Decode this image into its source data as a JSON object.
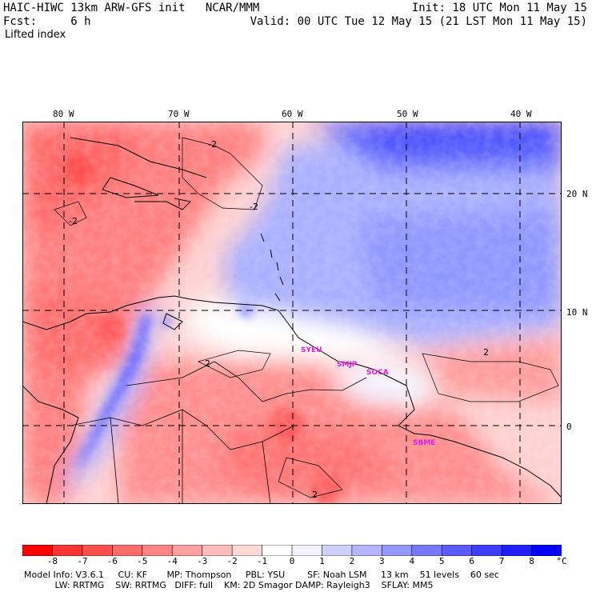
{
  "header": {
    "model_title": "HAIC-HIWC 13km ARW-GFS init   NCAR/MMM",
    "init_time": "Init: 18 UTC Mon 11 May 15",
    "forecast_label": "Fcst:     6 h",
    "valid_time": "Valid: 00 UTC Tue 12 May 15 (21 LST Mon 11 May 15)",
    "field_name": "Lifted index"
  },
  "map": {
    "longitude_labels": [
      "80 W",
      "70 W",
      "60 W",
      "50 W",
      "40 W"
    ],
    "latitude_labels": [
      "20 N",
      "10 N",
      "0"
    ],
    "stations": [
      "SYEU",
      "SMJP",
      "SOCA",
      "SBME"
    ],
    "station_color": "#e020e0",
    "contour_labels": [
      "-2",
      "-2",
      "-2",
      "2",
      "2",
      "2"
    ]
  },
  "colorbar": {
    "units": "°C",
    "tick_labels": [
      "-8",
      "-7",
      "-6",
      "-5",
      "-4",
      "-3",
      "-2",
      "-1",
      "0",
      "1",
      "2",
      "3",
      "4",
      "5",
      "6",
      "7",
      "8"
    ],
    "colors": [
      "#ff0000",
      "#ff3333",
      "#ff5050",
      "#ff6b6b",
      "#ff8585",
      "#ffa0a0",
      "#ffbcbc",
      "#ffd8d8",
      "#ffffff",
      "#f0f0ff",
      "#d0d0ff",
      "#b4b4ff",
      "#9696ff",
      "#7878ff",
      "#5a5aff",
      "#3c3cff",
      "#1e1eff",
      "#0000ff"
    ]
  },
  "footer": {
    "line1": "Model Info: V3.6.1     CU: KF       MP: Thompson     PBL: YSU        SF: Noah LSM     13 km    51 levels    60 sec",
    "line2": "           LW: RRTMG    SW: RRTMG   DIFF: full    KM: 2D Smagor DAMP: Rayleigh3    SFLAY: MM5"
  }
}
